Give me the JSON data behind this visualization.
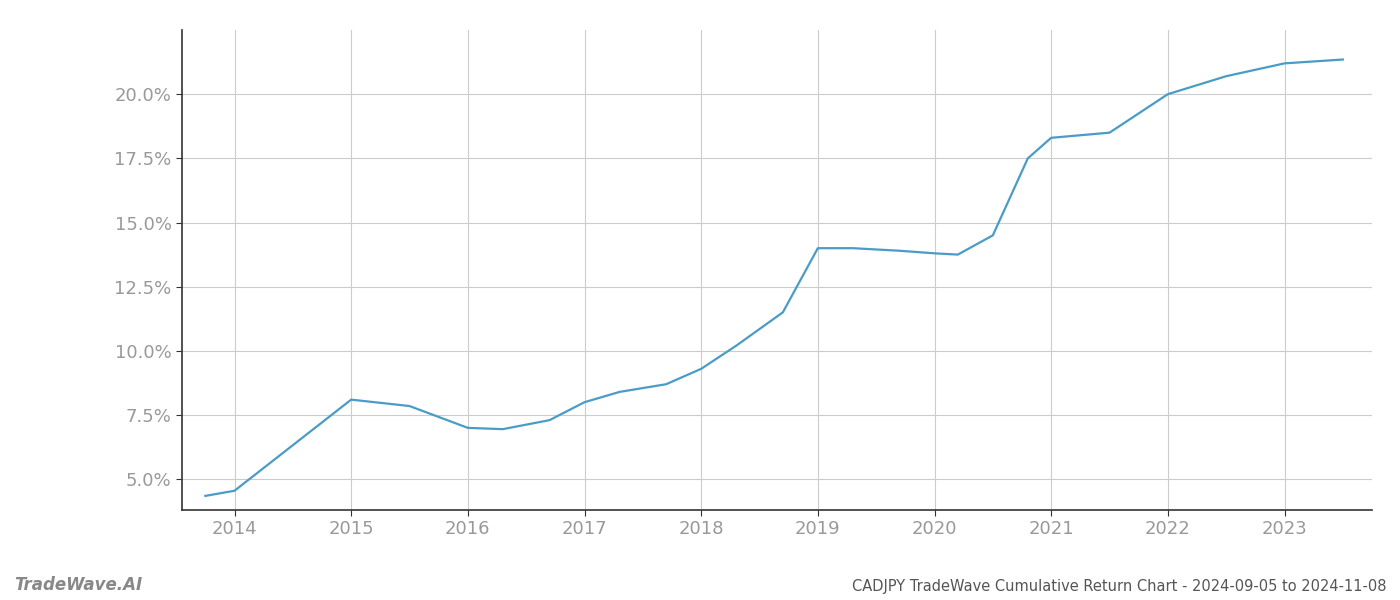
{
  "x_values": [
    2013.75,
    2014.0,
    2015.0,
    2015.5,
    2016.0,
    2016.3,
    2016.7,
    2017.0,
    2017.3,
    2017.7,
    2018.0,
    2018.3,
    2018.7,
    2019.0,
    2019.3,
    2019.7,
    2020.0,
    2020.2,
    2020.5,
    2020.8,
    2021.0,
    2021.5,
    2022.0,
    2022.5,
    2023.0,
    2023.5
  ],
  "y_values": [
    4.35,
    4.55,
    8.1,
    7.85,
    7.0,
    6.95,
    7.3,
    8.0,
    8.4,
    8.7,
    9.3,
    10.2,
    11.5,
    14.0,
    14.0,
    13.9,
    13.8,
    13.75,
    14.5,
    17.5,
    18.3,
    18.5,
    20.0,
    20.7,
    21.2,
    21.35
  ],
  "line_color": "#4a9cc7",
  "line_width": 1.6,
  "title": "CADJPY TradeWave Cumulative Return Chart - 2024-09-05 to 2024-11-08",
  "watermark": "TradeWave.AI",
  "x_ticks": [
    2014,
    2015,
    2016,
    2017,
    2018,
    2019,
    2020,
    2021,
    2022,
    2023
  ],
  "y_ticks": [
    5.0,
    7.5,
    10.0,
    12.5,
    15.0,
    17.5,
    20.0
  ],
  "xlim": [
    2013.55,
    2023.75
  ],
  "ylim": [
    3.8,
    22.5
  ],
  "background_color": "#ffffff",
  "grid_color": "#cccccc",
  "tick_label_color": "#999999",
  "title_color": "#555555",
  "watermark_color": "#888888",
  "spine_color": "#333333"
}
